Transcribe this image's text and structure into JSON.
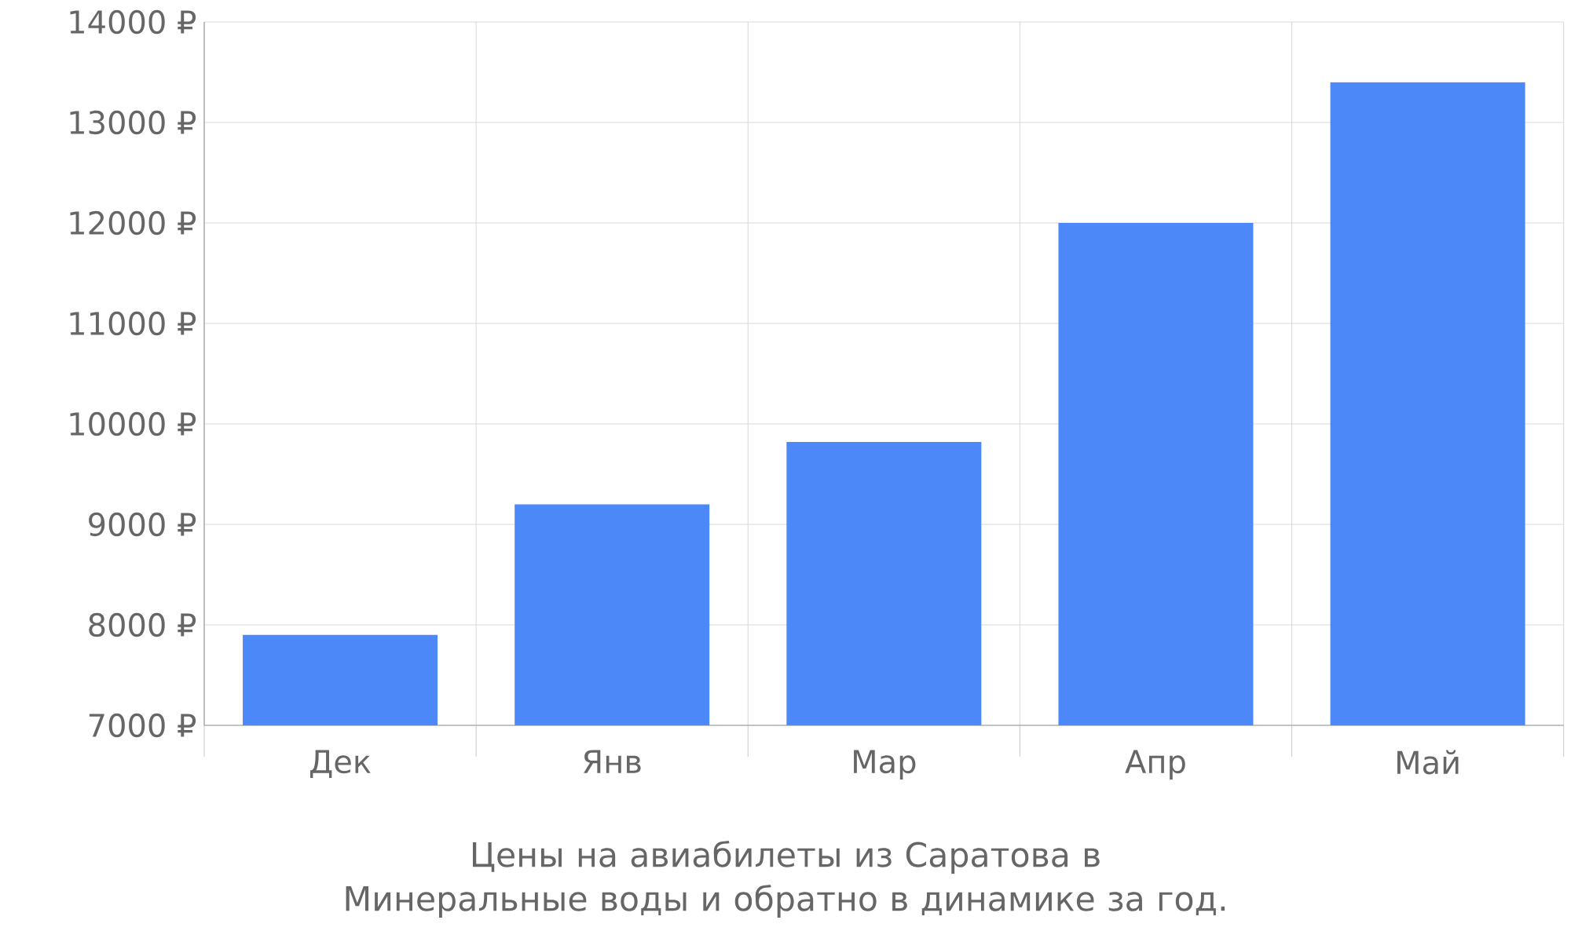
{
  "chart_data": {
    "type": "bar",
    "categories": [
      "Дек",
      "Янв",
      "Мар",
      "Апр",
      "Май"
    ],
    "values": [
      7900,
      9200,
      9820,
      12000,
      13400
    ],
    "color": "#4d88f9",
    "ylim": [
      7000,
      14000
    ],
    "yticks": [
      {
        "value": 7000,
        "label": "7000 ₽"
      },
      {
        "value": 8000,
        "label": "8000 ₽"
      },
      {
        "value": 9000,
        "label": "9000 ₽"
      },
      {
        "value": 10000,
        "label": "10000 ₽"
      },
      {
        "value": 11000,
        "label": "11000 ₽"
      },
      {
        "value": 12000,
        "label": "12000 ₽"
      },
      {
        "value": 13000,
        "label": "13000 ₽"
      },
      {
        "value": 14000,
        "label": "14000 ₽"
      }
    ],
    "grid": true,
    "annotations": [
      "Цены на авиабилеты из Саратова в Минеральные воды и обратно в динамике за год."
    ]
  }
}
